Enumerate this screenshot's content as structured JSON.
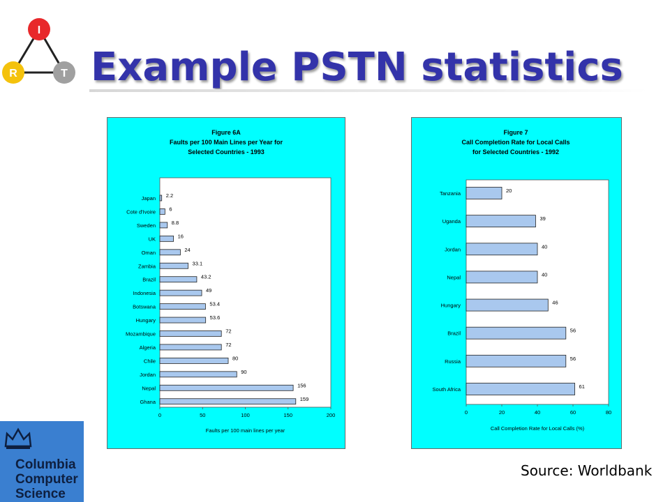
{
  "slide": {
    "title": "Example PSTN statistics",
    "source": "Source: Worldbank",
    "logo_irt": {
      "top": "I",
      "left": "R",
      "right": "T"
    },
    "logo_university": [
      "Columbia",
      "Computer",
      "Science"
    ]
  },
  "colors": {
    "title": "#3333aa",
    "panel_bg": "#00ffff",
    "bar_fill": "#a9c8ee",
    "logo_i": "#e8282b",
    "logo_r": "#f4c20d",
    "logo_t": "#a0a0a0",
    "logo_univ_bg": "#3a7fd0"
  },
  "chart_data": [
    {
      "type": "bar",
      "orientation": "horizontal",
      "title_lines": [
        "Figure 6A",
        "Faults per 100 Main Lines per Year for",
        "Selected Countries - 1993"
      ],
      "xlabel": "Faults per 100 main lines per year",
      "categories": [
        "Japan",
        "Cote d'Ivoire",
        "Sweden",
        "UK",
        "Oman",
        "Zambia",
        "Brazil",
        "Indonesia",
        "Botswana",
        "Hungary",
        "Mozambique",
        "Algeria",
        "Chile",
        "Jordan",
        "Nepal",
        "Ghana"
      ],
      "values": [
        2.2,
        6,
        8.8,
        16,
        24,
        33.1,
        43.2,
        49,
        53.4,
        53.6,
        72,
        72,
        80,
        90,
        156,
        159
      ],
      "labels": [
        "2.2",
        "6",
        "8.8",
        "16",
        "24",
        "33.1",
        "43.2",
        "49",
        "53.4",
        "53.6",
        "72",
        "72",
        "80",
        "90",
        "156",
        "159"
      ],
      "xlim": [
        0,
        200
      ],
      "xticks": [
        0,
        50,
        100,
        150,
        200
      ],
      "grid": false
    },
    {
      "type": "bar",
      "orientation": "horizontal",
      "title_lines": [
        "Figure 7",
        "Call Completion Rate for Local Calls",
        "for Selected Countries - 1992"
      ],
      "xlabel": "Call Completion Rate for Local Calls (%)",
      "categories": [
        "Tanzania",
        "Uganda",
        "Jordan",
        "Nepal",
        "Hungary",
        "Brazil",
        "Russia",
        "South Africa"
      ],
      "values": [
        20,
        39,
        40,
        40,
        46,
        56,
        56,
        61
      ],
      "labels": [
        "20",
        "39",
        "40",
        "40",
        "46",
        "56",
        "56",
        "61"
      ],
      "xlim": [
        0,
        80
      ],
      "xticks": [
        0,
        20,
        40,
        60,
        80
      ],
      "grid": false
    }
  ]
}
